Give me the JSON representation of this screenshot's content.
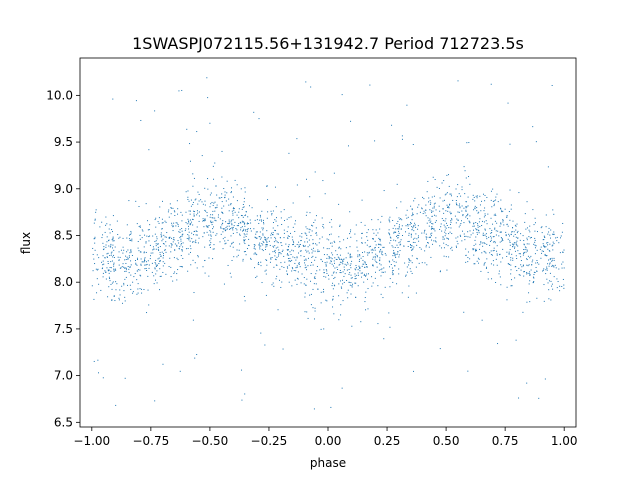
{
  "chart_data": {
    "type": "scatter",
    "title": "1SWASPJ072115.56+131942.7 Period 712723.5s",
    "xlabel": "phase",
    "ylabel": "flux",
    "xlim": [
      -1.05,
      1.05
    ],
    "ylim": [
      6.45,
      10.4
    ],
    "xticks": [
      -1.0,
      -0.75,
      -0.5,
      -0.25,
      0.0,
      0.25,
      0.5,
      0.75,
      1.0
    ],
    "xtick_labels": [
      "−1.00",
      "−0.75",
      "−0.50",
      "−0.25",
      "0.00",
      "0.25",
      "0.50",
      "0.75",
      "1.00"
    ],
    "yticks": [
      6.5,
      7.0,
      7.5,
      8.0,
      8.5,
      9.0,
      9.5,
      10.0
    ],
    "ytick_labels": [
      "6.5",
      "7.0",
      "7.5",
      "8.0",
      "8.5",
      "9.0",
      "9.5",
      "10.0"
    ],
    "grid": false,
    "marker_color": "#1f77b4",
    "phase_profile": {
      "phase": [
        -1.0,
        -0.9,
        -0.8,
        -0.7,
        -0.6,
        -0.5,
        -0.45,
        -0.35,
        -0.25,
        -0.15,
        -0.05,
        0.0,
        0.1,
        0.2,
        0.3,
        0.4,
        0.5,
        0.55,
        0.65,
        0.75,
        0.85,
        0.95,
        1.0
      ],
      "mean_flux": [
        8.3,
        8.2,
        8.25,
        8.4,
        8.55,
        8.65,
        8.7,
        8.55,
        8.45,
        8.3,
        8.25,
        8.2,
        8.15,
        8.25,
        8.4,
        8.55,
        8.7,
        8.72,
        8.55,
        8.45,
        8.3,
        8.25,
        8.1
      ]
    },
    "flux_scatter": 0.22,
    "outlier_range": [
      6.6,
      10.2
    ]
  }
}
